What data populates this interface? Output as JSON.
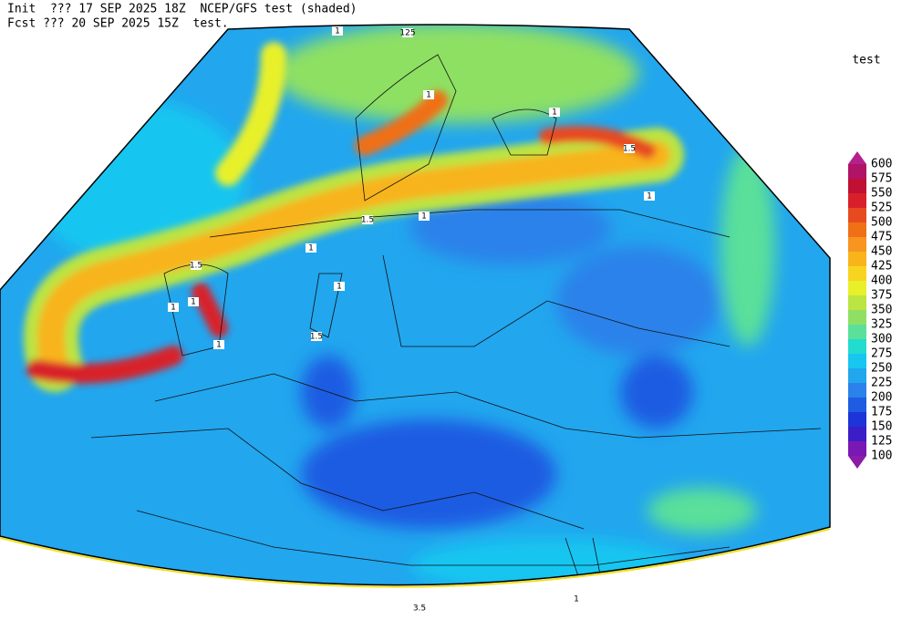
{
  "header": {
    "line1": "Init  ??? 17 SEP 2025 18Z  NCEP/GFS test (shaded)",
    "line2": "Fcst ??? 20 SEP 2025 15Z  test."
  },
  "legend": {
    "title": "test",
    "levels": [
      100,
      125,
      150,
      175,
      200,
      225,
      250,
      275,
      300,
      325,
      350,
      375,
      400,
      425,
      450,
      475,
      500,
      525,
      550,
      575,
      600
    ],
    "colors": [
      "#8a1ca8",
      "#7a18b4",
      "#3b1ec8",
      "#1c34d8",
      "#1e5ce2",
      "#2a82ea",
      "#22a6ee",
      "#18c6f0",
      "#22dcd0",
      "#5ae09a",
      "#8ee064",
      "#bce442",
      "#e8f02a",
      "#f8d420",
      "#f8b41a",
      "#f89420",
      "#f07018",
      "#e84a20",
      "#d8202a",
      "#c01034",
      "#b01466",
      "#b4208c"
    ]
  },
  "contour_labels": [
    "125",
    "1",
    "1",
    "1.5",
    "1",
    "1.5",
    "1",
    "1",
    "1",
    "1",
    "1.5",
    "1",
    "1.5",
    "1",
    "1",
    "3.5",
    "1"
  ]
}
